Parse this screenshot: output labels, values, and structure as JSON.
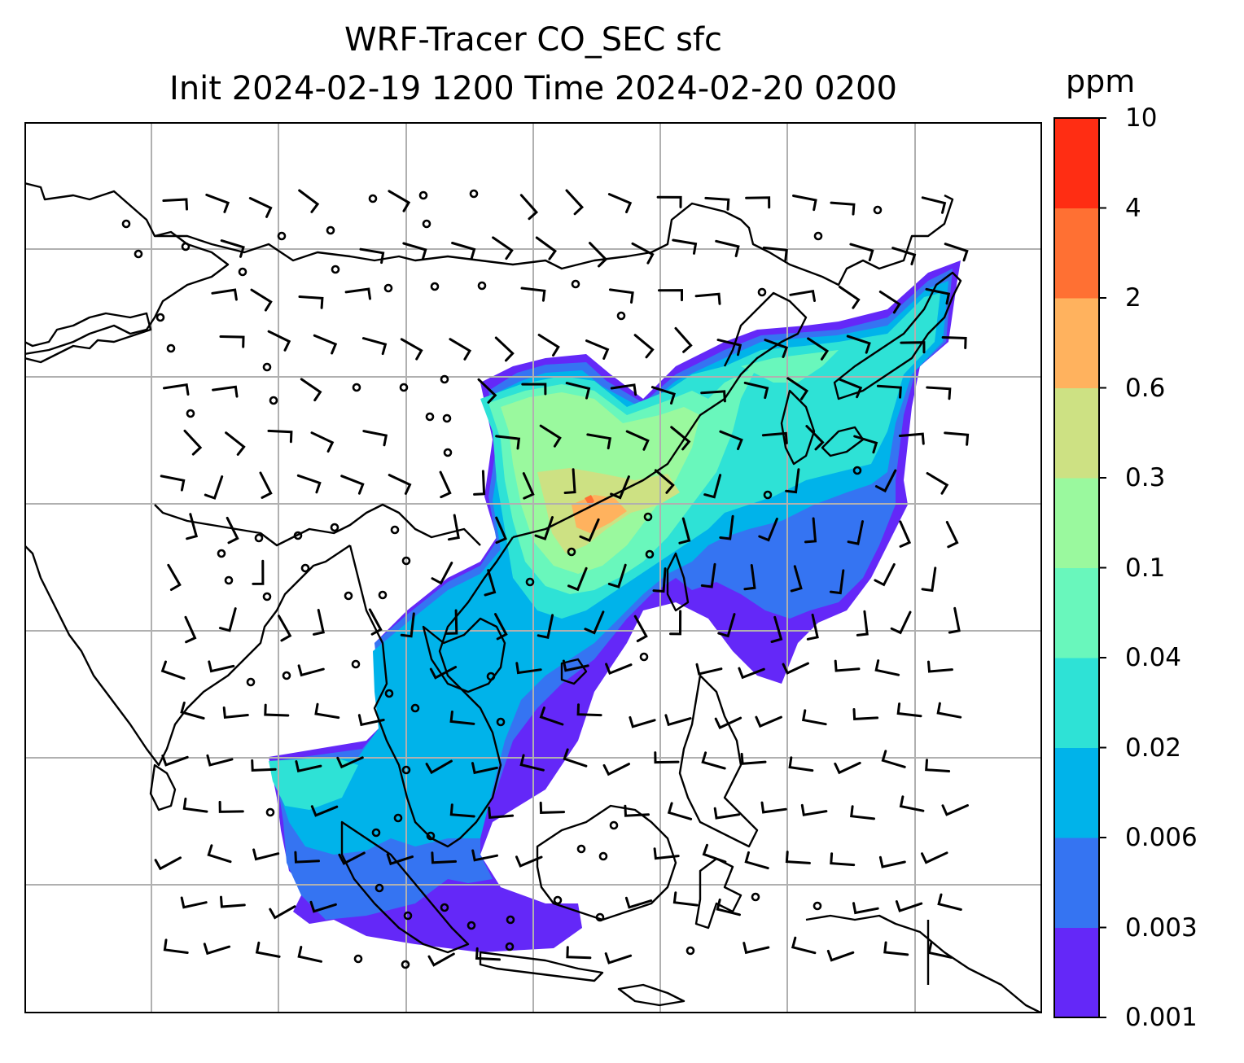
{
  "figure": {
    "title_line1": "WRF-Tracer CO_SEC sfc",
    "title_line2": "Init 2024-02-19 1200 Time 2024-02-20 0200"
  },
  "colorbar": {
    "unit": "ppm",
    "levels": [
      "0.001",
      "0.003",
      "0.006",
      "0.02",
      "0.04",
      "0.1",
      "0.3",
      "0.6",
      "2",
      "4",
      "10"
    ],
    "colors": [
      "#6428f8",
      "#3574f2",
      "#00b3ea",
      "#2ee2d6",
      "#69f7bc",
      "#9af99e",
      "#cde183",
      "#ffb25e",
      "#ff7033",
      "#ff2d13"
    ]
  },
  "map": {
    "background": "#ffffff",
    "coastline_color": "#000000",
    "gridline_color": "#b0b0b0",
    "wind_barb_color": "#000000",
    "field": "CO_SEC surface tracer concentration",
    "overlays": [
      "coastlines",
      "country borders",
      "gridlines",
      "wind barbs",
      "calm circles"
    ]
  }
}
